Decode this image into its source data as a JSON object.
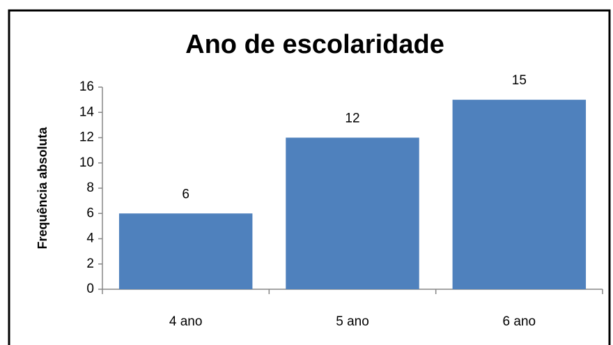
{
  "chart_data": {
    "type": "bar",
    "title": "Ano de escolaridade",
    "y_label": "Frequência absoluta",
    "categories": [
      "4 ano",
      "5 ano",
      "6 ano"
    ],
    "values": [
      6,
      12,
      15
    ],
    "color": "#4f81bd",
    "ylim": [
      0,
      16
    ],
    "yticks": [
      0,
      2,
      4,
      6,
      8,
      10,
      12,
      14,
      16
    ],
    "grid": false
  }
}
